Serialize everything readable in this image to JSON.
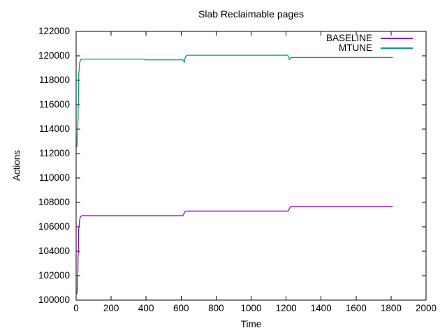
{
  "title": "Slab Reclaimable pages",
  "chart_data": {
    "type": "line",
    "title": "Slab Reclaimable pages",
    "xlabel": "Time",
    "ylabel": "Actions",
    "xlim": [
      0,
      2000
    ],
    "ylim": [
      100000,
      122000
    ],
    "grid": false,
    "legend_position": "top-right-inside",
    "xticks": [
      0,
      200,
      400,
      600,
      800,
      1000,
      1200,
      1400,
      1600,
      1800,
      2000
    ],
    "xtick_labels": [
      "0",
      "200",
      "400",
      "600",
      "800",
      "1000",
      "1200",
      "1400",
      "1600",
      "1800",
      "2000"
    ],
    "yticks": [
      100000,
      102000,
      104000,
      106000,
      108000,
      110000,
      112000,
      114000,
      116000,
      118000,
      120000,
      122000
    ],
    "ytick_labels": [
      "100000",
      "102000",
      "104000",
      "106000",
      "108000",
      "110000",
      "112000",
      "114000",
      "116000",
      "118000",
      "120000",
      "122000"
    ],
    "series": [
      {
        "name": "BASELINE",
        "color": "#9400d3",
        "points": [
          [
            5,
            100500
          ],
          [
            6,
            100900
          ],
          [
            7,
            101500
          ],
          [
            8,
            101600
          ],
          [
            9,
            102150
          ],
          [
            10,
            102200
          ],
          [
            11,
            103650
          ],
          [
            12,
            103750
          ],
          [
            13,
            104000
          ],
          [
            14,
            105750
          ],
          [
            15,
            105850
          ],
          [
            17,
            106100
          ],
          [
            19,
            106400
          ],
          [
            22,
            106700
          ],
          [
            26,
            106850
          ],
          [
            33,
            106910
          ],
          [
            609,
            106910
          ],
          [
            614,
            107000
          ],
          [
            619,
            107180
          ],
          [
            625,
            107270
          ],
          [
            632,
            107290
          ],
          [
            1211,
            107290
          ],
          [
            1216,
            107400
          ],
          [
            1222,
            107580
          ],
          [
            1229,
            107660
          ],
          [
            1237,
            107670
          ],
          [
            1810,
            107670
          ]
        ]
      },
      {
        "name": "MTUNE",
        "color": "#009e73",
        "points": [
          [
            5,
            112520
          ],
          [
            6,
            113500
          ],
          [
            7,
            113560
          ],
          [
            9,
            113700
          ],
          [
            10,
            114600
          ],
          [
            11,
            114660
          ],
          [
            12,
            116030
          ],
          [
            14,
            116130
          ],
          [
            15,
            118570
          ],
          [
            16,
            118650
          ],
          [
            18,
            118980
          ],
          [
            20,
            119390
          ],
          [
            23,
            119570
          ],
          [
            27,
            119680
          ],
          [
            33,
            119730
          ],
          [
            388,
            119730
          ],
          [
            393,
            119670
          ],
          [
            610,
            119670
          ],
          [
            615,
            119580
          ],
          [
            618,
            119450
          ],
          [
            621,
            119700
          ],
          [
            626,
            119950
          ],
          [
            633,
            120040
          ],
          [
            642,
            120050
          ],
          [
            1209,
            120050
          ],
          [
            1214,
            119890
          ],
          [
            1219,
            119700
          ],
          [
            1224,
            119800
          ],
          [
            1231,
            119850
          ],
          [
            1240,
            119860
          ],
          [
            1810,
            119860
          ]
        ]
      }
    ]
  },
  "colors": {
    "border": "#000000",
    "text": "#000000",
    "background": "#ffffff"
  }
}
